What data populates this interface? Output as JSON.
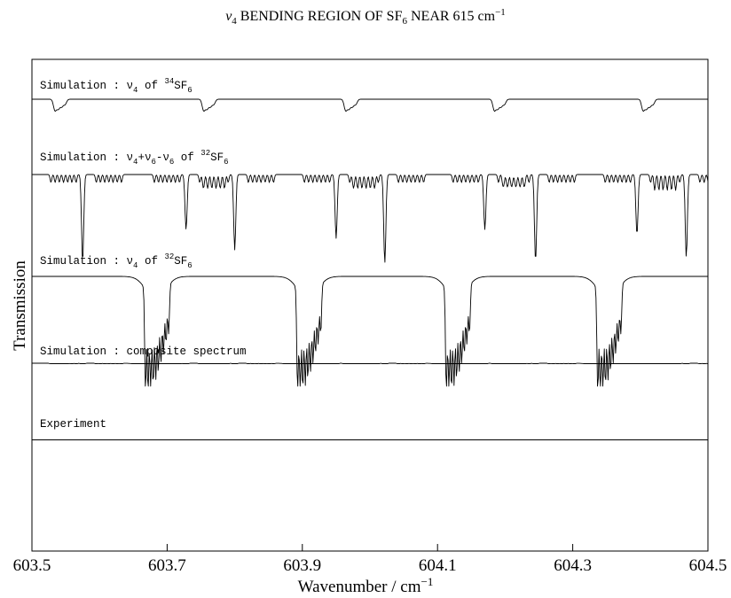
{
  "chart_data": {
    "type": "line",
    "title": {
      "nu": "ν",
      "nu_sub": "4",
      "mid": " BENDING REGION OF SF",
      "sf_sub": "6",
      "near": " NEAR 615 cm",
      "exp": "−1"
    },
    "xlabel": {
      "text": "Wavenumber / cm",
      "exp": "−1"
    },
    "ylabel": "Transmission",
    "xlim": [
      603.5,
      604.5
    ],
    "x_ticks": [
      "603.5",
      "603.7",
      "603.9",
      "604.1",
      "604.3",
      "604.5"
    ],
    "x_tick_values": [
      603.5,
      603.7,
      603.9,
      604.1,
      604.3,
      604.5
    ],
    "grid": false,
    "legend": "none",
    "series": [
      {
        "label": {
          "prefix": "Simulation : ν",
          "s1": "4",
          "mid": " of ",
          "iso": "34",
          "mol": "SF",
          "s2": "6"
        },
        "bands": [
          {
            "x": 603.54,
            "depth": 0.18,
            "type": "multiplet"
          },
          {
            "x": 603.76,
            "depth": 0.18,
            "type": "multiplet"
          },
          {
            "x": 603.97,
            "depth": 0.18,
            "type": "multiplet"
          },
          {
            "x": 604.19,
            "depth": 0.18,
            "type": "multiplet"
          },
          {
            "x": 604.41,
            "depth": 0.18,
            "type": "multiplet"
          }
        ]
      },
      {
        "label": {
          "prefix": "Simulation : ν",
          "s1": "4",
          "mid": "+ν",
          "s3": "6",
          "mid2": "-ν",
          "s4": "6",
          "mid3": " of ",
          "iso": "32",
          "mol": "SF",
          "s2": "6"
        },
        "bands": [
          {
            "x": 603.575,
            "depth": 0.98,
            "type": "sharp"
          },
          {
            "x": 603.728,
            "depth": 0.62,
            "type": "sharp"
          },
          {
            "x": 603.8,
            "depth": 0.85,
            "type": "sharp"
          },
          {
            "x": 603.95,
            "depth": 0.72,
            "type": "sharp"
          },
          {
            "x": 604.022,
            "depth": 1.0,
            "type": "sharp"
          },
          {
            "x": 604.17,
            "depth": 0.62,
            "type": "sharp"
          },
          {
            "x": 604.245,
            "depth": 0.98,
            "type": "sharp"
          },
          {
            "x": 604.395,
            "depth": 0.68,
            "type": "sharp"
          },
          {
            "x": 604.468,
            "depth": 0.93,
            "type": "sharp"
          }
        ]
      },
      {
        "label": {
          "prefix": "Simulation : ν",
          "s1": "4",
          "mid": " of ",
          "iso": "32",
          "mol": "SF",
          "s2": "6"
        },
        "bands": [
          {
            "x": 603.668,
            "depth": 1.0,
            "type": "manifold"
          },
          {
            "x": 603.893,
            "depth": 1.0,
            "type": "manifold"
          },
          {
            "x": 604.113,
            "depth": 1.0,
            "type": "manifold"
          },
          {
            "x": 604.337,
            "depth": 1.0,
            "type": "manifold"
          }
        ]
      },
      {
        "label": {
          "text": "Simulation : composite spectrum"
        },
        "composite": true
      },
      {
        "label": {
          "text": "Experiment"
        },
        "experiment": true
      }
    ]
  }
}
